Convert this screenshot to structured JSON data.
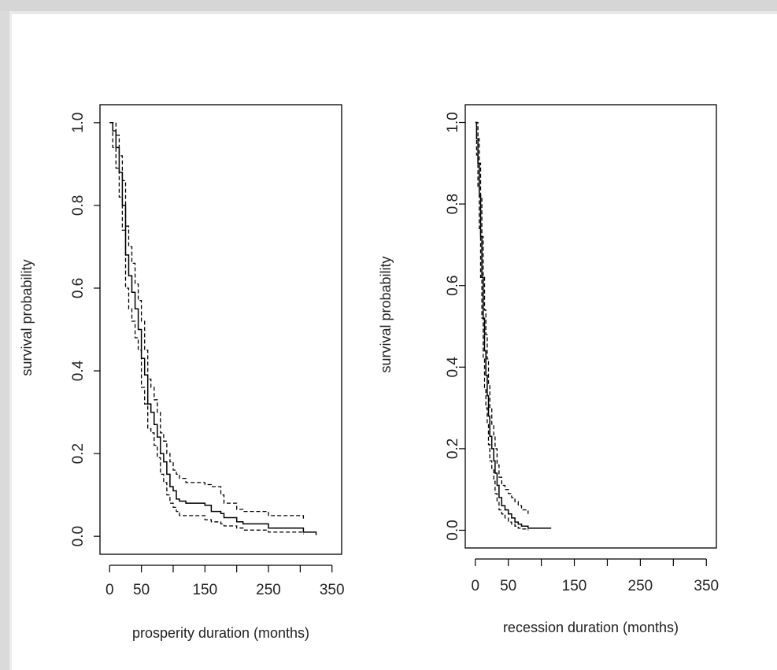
{
  "chart_data": [
    {
      "type": "line",
      "xlabel": "prosperity duration (months)",
      "ylabel": "survival probability",
      "xlim": [
        0,
        350
      ],
      "ylim": [
        0,
        1
      ],
      "x_ticks": [
        0,
        50,
        100,
        150,
        200,
        250,
        300,
        350
      ],
      "x_tick_labels": [
        "0",
        "50",
        "",
        "150",
        "",
        "250",
        "",
        "350"
      ],
      "y_ticks": [
        0.0,
        0.2,
        0.4,
        0.6,
        0.8,
        1.0
      ],
      "y_tick_labels": [
        "0.0",
        "0.2",
        "0.4",
        "0.6",
        "0.8",
        "1.0"
      ],
      "grid": false,
      "series": [
        {
          "style": "solid",
          "x": [
            0,
            5,
            10,
            15,
            20,
            25,
            30,
            35,
            40,
            45,
            50,
            55,
            60,
            65,
            70,
            75,
            80,
            85,
            90,
            95,
            100,
            105,
            110,
            120,
            150,
            160,
            175,
            180,
            200,
            210,
            250,
            300,
            305,
            325
          ],
          "y": [
            1.0,
            0.98,
            0.94,
            0.88,
            0.8,
            0.68,
            0.63,
            0.59,
            0.55,
            0.5,
            0.43,
            0.39,
            0.32,
            0.3,
            0.27,
            0.24,
            0.2,
            0.18,
            0.15,
            0.12,
            0.11,
            0.09,
            0.085,
            0.08,
            0.075,
            0.06,
            0.055,
            0.045,
            0.035,
            0.03,
            0.02,
            0.02,
            0.01,
            0.003
          ]
        },
        {
          "style": "dashed",
          "x": [
            0,
            5,
            10,
            15,
            20,
            25,
            30,
            35,
            40,
            45,
            50,
            55,
            60,
            65,
            70,
            75,
            80,
            85,
            90,
            95,
            100,
            105,
            110,
            120,
            150,
            160,
            175,
            180,
            200,
            210,
            250,
            300,
            305
          ],
          "y": [
            1.0,
            1.0,
            0.97,
            0.92,
            0.86,
            0.75,
            0.7,
            0.66,
            0.61,
            0.57,
            0.52,
            0.45,
            0.38,
            0.36,
            0.33,
            0.3,
            0.25,
            0.23,
            0.2,
            0.18,
            0.16,
            0.15,
            0.14,
            0.13,
            0.125,
            0.12,
            0.1,
            0.08,
            0.065,
            0.06,
            0.05,
            0.05,
            0.04
          ]
        },
        {
          "style": "dashed",
          "x": [
            0,
            5,
            10,
            15,
            20,
            25,
            30,
            35,
            40,
            45,
            50,
            55,
            60,
            65,
            70,
            75,
            80,
            85,
            90,
            95,
            100,
            105,
            110,
            120,
            150,
            160,
            175,
            180,
            200,
            210,
            250,
            300,
            305
          ],
          "y": [
            1.0,
            0.94,
            0.89,
            0.82,
            0.74,
            0.6,
            0.55,
            0.52,
            0.48,
            0.45,
            0.36,
            0.32,
            0.26,
            0.25,
            0.22,
            0.19,
            0.15,
            0.13,
            0.1,
            0.08,
            0.07,
            0.06,
            0.05,
            0.05,
            0.04,
            0.035,
            0.03,
            0.025,
            0.02,
            0.015,
            0.01,
            0.01,
            0.005
          ]
        }
      ]
    },
    {
      "type": "line",
      "xlabel": "recession duration (months)",
      "ylabel": "survival probability",
      "xlim": [
        0,
        350
      ],
      "ylim": [
        0,
        1
      ],
      "x_ticks": [
        0,
        50,
        100,
        150,
        200,
        250,
        300,
        350
      ],
      "x_tick_labels": [
        "0",
        "50",
        "",
        "150",
        "",
        "250",
        "",
        "350"
      ],
      "y_ticks": [
        0.0,
        0.2,
        0.4,
        0.6,
        0.8,
        1.0
      ],
      "y_tick_labels": [
        "0.0",
        "0.2",
        "0.4",
        "0.6",
        "0.8",
        "1.0"
      ],
      "grid": false,
      "series": [
        {
          "style": "solid",
          "x": [
            0,
            2,
            4,
            6,
            8,
            10,
            12,
            14,
            16,
            18,
            20,
            22,
            25,
            28,
            30,
            33,
            36,
            40,
            45,
            50,
            55,
            60,
            65,
            70,
            80,
            115
          ],
          "y": [
            1.0,
            0.96,
            0.9,
            0.82,
            0.72,
            0.62,
            0.52,
            0.44,
            0.38,
            0.33,
            0.28,
            0.23,
            0.2,
            0.17,
            0.14,
            0.11,
            0.08,
            0.06,
            0.05,
            0.04,
            0.03,
            0.02,
            0.015,
            0.01,
            0.005,
            0.005
          ]
        },
        {
          "style": "dashed",
          "x": [
            0,
            2,
            4,
            6,
            8,
            10,
            12,
            14,
            16,
            18,
            20,
            22,
            25,
            28,
            30,
            33,
            36,
            40,
            45,
            50,
            55,
            60,
            65,
            70,
            80
          ],
          "y": [
            1.0,
            1.0,
            0.96,
            0.9,
            0.82,
            0.72,
            0.62,
            0.54,
            0.48,
            0.42,
            0.36,
            0.3,
            0.26,
            0.23,
            0.2,
            0.16,
            0.13,
            0.11,
            0.1,
            0.09,
            0.08,
            0.07,
            0.06,
            0.05,
            0.04
          ]
        },
        {
          "style": "dashed",
          "x": [
            0,
            2,
            4,
            6,
            8,
            10,
            12,
            14,
            16,
            18,
            20,
            22,
            25,
            28,
            30,
            33,
            36,
            40,
            45,
            50,
            55,
            60,
            65,
            70,
            80
          ],
          "y": [
            1.0,
            0.92,
            0.84,
            0.74,
            0.62,
            0.52,
            0.42,
            0.35,
            0.3,
            0.26,
            0.21,
            0.17,
            0.15,
            0.12,
            0.09,
            0.07,
            0.05,
            0.04,
            0.03,
            0.02,
            0.015,
            0.01,
            0.005,
            0.003,
            0.0
          ]
        }
      ]
    }
  ]
}
